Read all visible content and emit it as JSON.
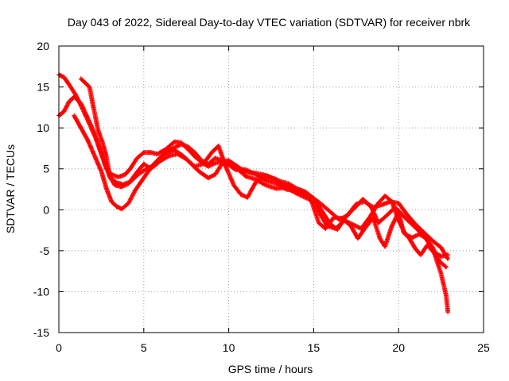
{
  "chart_data": {
    "type": "scatter",
    "title": "Day 043 of 2022, Sidereal Day-to-day VTEC variation (SDTVAR) for receiver nbrk",
    "xlabel": "GPS time / hours",
    "ylabel": "SDTVAR / TECUs",
    "xlim": [
      0,
      25
    ],
    "ylim": [
      -15,
      20
    ],
    "xticks": [
      0,
      5,
      10,
      15,
      20,
      25
    ],
    "yticks": [
      -15,
      -10,
      -5,
      0,
      5,
      10,
      15,
      20
    ],
    "grid": true,
    "marker": "+",
    "color": "#ff0000",
    "series": [
      {
        "name": "track-1",
        "points": [
          [
            0.0,
            16.5
          ],
          [
            0.3,
            16.2
          ],
          [
            0.6,
            15.3
          ],
          [
            1.0,
            14.0
          ],
          [
            1.4,
            12.3
          ],
          [
            1.8,
            10.5
          ],
          [
            2.2,
            8.6
          ],
          [
            2.5,
            6.8
          ],
          [
            2.8,
            5.0
          ],
          [
            3.1,
            4.3
          ],
          [
            3.5,
            4.0
          ],
          [
            3.9,
            4.3
          ],
          [
            4.2,
            5.0
          ],
          [
            4.6,
            6.3
          ],
          [
            5.0,
            7.0
          ],
          [
            5.4,
            7.0
          ],
          [
            5.8,
            6.8
          ],
          [
            6.3,
            7.4
          ],
          [
            6.8,
            8.3
          ],
          [
            7.2,
            8.2
          ],
          [
            7.6,
            7.4
          ],
          [
            8.0,
            6.5
          ],
          [
            8.4,
            5.8
          ],
          [
            8.8,
            5.3
          ],
          [
            9.2,
            5.7
          ],
          [
            9.6,
            5.9
          ],
          [
            10.0,
            6.0
          ],
          [
            10.5,
            5.3
          ],
          [
            11.0,
            4.6
          ],
          [
            11.5,
            4.5
          ],
          [
            12.0,
            4.3
          ],
          [
            12.5,
            3.9
          ],
          [
            13.0,
            3.5
          ],
          [
            13.5,
            3.2
          ],
          [
            14.0,
            2.6
          ],
          [
            14.5,
            2.2
          ],
          [
            15.0,
            1.4
          ],
          [
            15.5,
            0.6
          ],
          [
            16.0,
            -0.3
          ],
          [
            16.5,
            -1.2
          ],
          [
            17.0,
            -0.7
          ],
          [
            17.5,
            0.7
          ],
          [
            18.0,
            1.0
          ],
          [
            18.5,
            0.3
          ],
          [
            19.0,
            0.6
          ],
          [
            19.5,
            1.0
          ],
          [
            20.0,
            0.8
          ],
          [
            20.5,
            -0.6
          ],
          [
            21.0,
            -1.8
          ],
          [
            21.5,
            -2.8
          ],
          [
            22.0,
            -3.8
          ],
          [
            22.5,
            -4.6
          ],
          [
            22.9,
            -6.0
          ]
        ]
      },
      {
        "name": "track-2",
        "points": [
          [
            0.0,
            11.5
          ],
          [
            0.3,
            12.0
          ],
          [
            0.6,
            13.2
          ],
          [
            0.9,
            13.8
          ],
          [
            1.3,
            13.0
          ],
          [
            1.7,
            11.2
          ],
          [
            2.1,
            9.3
          ],
          [
            2.5,
            7.0
          ],
          [
            2.8,
            5.2
          ],
          [
            3.0,
            4.0
          ],
          [
            3.4,
            3.3
          ],
          [
            3.8,
            3.1
          ],
          [
            4.2,
            3.4
          ],
          [
            4.6,
            4.2
          ],
          [
            5.0,
            4.8
          ],
          [
            5.4,
            5.2
          ],
          [
            5.8,
            6.0
          ],
          [
            6.3,
            6.9
          ],
          [
            6.8,
            7.3
          ],
          [
            7.3,
            6.6
          ],
          [
            7.8,
            5.6
          ],
          [
            8.3,
            4.6
          ],
          [
            8.8,
            3.9
          ],
          [
            9.2,
            4.3
          ],
          [
            9.6,
            5.6
          ],
          [
            10.0,
            5.9
          ],
          [
            10.5,
            5.0
          ],
          [
            11.0,
            4.1
          ],
          [
            11.6,
            3.7
          ],
          [
            12.2,
            3.0
          ],
          [
            12.8,
            2.6
          ],
          [
            13.4,
            2.7
          ],
          [
            14.0,
            2.0
          ],
          [
            14.6,
            1.4
          ],
          [
            15.0,
            1.1
          ],
          [
            15.4,
            -0.6
          ],
          [
            15.8,
            -2.0
          ],
          [
            16.3,
            -2.3
          ],
          [
            16.8,
            -1.3
          ],
          [
            17.3,
            -1.8
          ],
          [
            17.8,
            -2.3
          ],
          [
            18.3,
            -0.9
          ],
          [
            18.8,
            0.8
          ],
          [
            19.2,
            1.7
          ],
          [
            19.6,
            1.0
          ],
          [
            20.0,
            -1.3
          ],
          [
            20.4,
            -3.0
          ],
          [
            20.8,
            -3.4
          ],
          [
            21.2,
            -3.0
          ],
          [
            21.6,
            -3.4
          ],
          [
            22.0,
            -4.6
          ],
          [
            22.4,
            -6.3
          ],
          [
            22.8,
            -7.0
          ]
        ]
      },
      {
        "name": "track-3",
        "points": [
          [
            0.9,
            11.5
          ],
          [
            1.3,
            10.0
          ],
          [
            1.7,
            8.5
          ],
          [
            2.1,
            6.6
          ],
          [
            2.5,
            4.7
          ],
          [
            2.8,
            2.6
          ],
          [
            3.1,
            1.0
          ],
          [
            3.4,
            0.4
          ],
          [
            3.7,
            0.1
          ],
          [
            4.1,
            0.8
          ],
          [
            4.5,
            2.4
          ],
          [
            4.9,
            3.6
          ],
          [
            5.3,
            4.8
          ],
          [
            5.7,
            5.8
          ],
          [
            6.2,
            6.9
          ],
          [
            6.7,
            7.5
          ],
          [
            7.2,
            8.0
          ],
          [
            7.6,
            7.7
          ],
          [
            8.0,
            7.0
          ],
          [
            8.4,
            6.0
          ],
          [
            8.8,
            5.6
          ],
          [
            9.2,
            6.3
          ],
          [
            9.6,
            6.0
          ],
          [
            10.0,
            5.5
          ],
          [
            10.4,
            4.9
          ],
          [
            11.0,
            4.9
          ],
          [
            11.6,
            4.3
          ],
          [
            12.2,
            3.6
          ],
          [
            12.8,
            3.2
          ],
          [
            13.4,
            2.5
          ],
          [
            14.0,
            2.3
          ],
          [
            14.5,
            2.1
          ],
          [
            14.9,
            0.9
          ],
          [
            15.3,
            -1.6
          ],
          [
            15.7,
            -2.3
          ],
          [
            16.2,
            -0.9
          ],
          [
            16.7,
            -1.1
          ],
          [
            17.2,
            -2.0
          ],
          [
            17.6,
            -3.5
          ],
          [
            18.0,
            -2.3
          ],
          [
            18.5,
            -1.0
          ],
          [
            18.9,
            -3.5
          ],
          [
            19.2,
            -4.5
          ],
          [
            19.6,
            -2.0
          ],
          [
            20.0,
            -0.3
          ],
          [
            20.3,
            -2.8
          ],
          [
            20.6,
            -3.4
          ],
          [
            21.0,
            -4.8
          ],
          [
            21.3,
            -5.5
          ],
          [
            21.7,
            -4.3
          ],
          [
            22.1,
            -5.3
          ],
          [
            22.5,
            -7.8
          ],
          [
            22.8,
            -10.5
          ],
          [
            22.9,
            -12.5
          ]
        ]
      },
      {
        "name": "track-4",
        "points": [
          [
            1.3,
            16.0
          ],
          [
            1.8,
            15.0
          ],
          [
            2.3,
            9.8
          ],
          [
            2.6,
            8.0
          ],
          [
            2.8,
            6.5
          ],
          [
            3.0,
            4.0
          ],
          [
            3.3,
            3.0
          ],
          [
            3.7,
            2.8
          ],
          [
            4.1,
            3.2
          ],
          [
            4.6,
            4.6
          ],
          [
            5.0,
            5.6
          ],
          [
            5.4,
            5.0
          ],
          [
            6.0,
            6.0
          ],
          [
            6.5,
            6.6
          ],
          [
            7.0,
            6.8
          ],
          [
            7.5,
            6.2
          ],
          [
            8.0,
            5.3
          ],
          [
            8.5,
            5.6
          ],
          [
            9.0,
            7.0
          ],
          [
            9.4,
            7.8
          ],
          [
            9.8,
            5.4
          ],
          [
            10.3,
            3.0
          ],
          [
            10.7,
            1.9
          ],
          [
            11.1,
            1.5
          ],
          [
            11.6,
            3.4
          ],
          [
            12.2,
            4.2
          ],
          [
            12.8,
            3.7
          ],
          [
            13.4,
            2.9
          ],
          [
            14.0,
            2.2
          ],
          [
            14.6,
            1.8
          ],
          [
            15.1,
            1.2
          ],
          [
            15.5,
            -0.2
          ],
          [
            16.0,
            -1.8
          ],
          [
            16.4,
            -2.4
          ],
          [
            16.9,
            -0.8
          ],
          [
            17.4,
            0.2
          ],
          [
            17.9,
            1.3
          ],
          [
            18.4,
            0.3
          ],
          [
            18.8,
            -1.6
          ],
          [
            19.3,
            -0.7
          ],
          [
            19.8,
            0.3
          ],
          [
            20.3,
            -0.8
          ],
          [
            20.8,
            -1.8
          ],
          [
            21.3,
            -2.8
          ],
          [
            21.7,
            -3.8
          ],
          [
            22.1,
            -5.2
          ],
          [
            22.5,
            -5.7
          ],
          [
            22.9,
            -5.5
          ]
        ]
      }
    ]
  }
}
